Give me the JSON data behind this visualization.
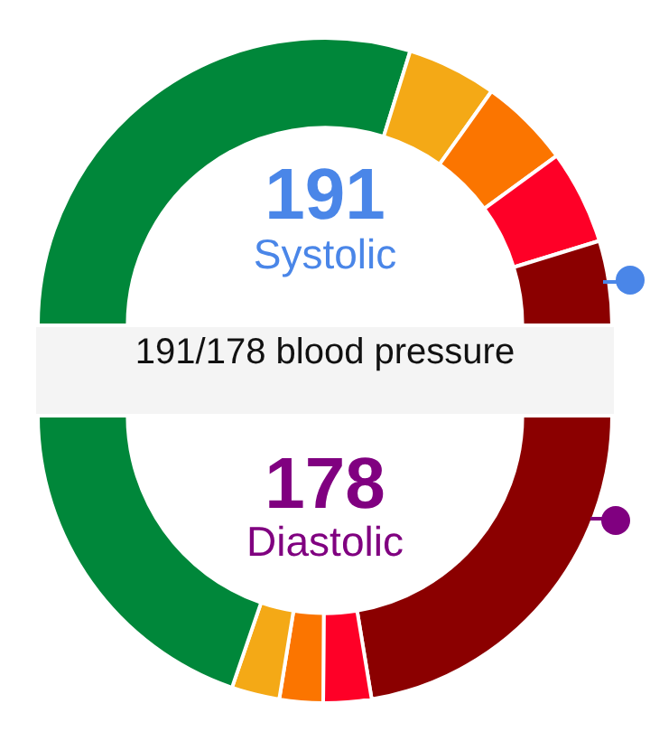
{
  "chart_data": [
    {
      "type": "donut",
      "title": "191/178 blood pressure",
      "annotations": [
        "191",
        "Systolic"
      ],
      "categories": [
        null,
        null,
        null,
        null,
        null
      ],
      "values": [
        59.6,
        10.1,
        10.2,
        10.6,
        9.5
      ],
      "colors": [
        "#00873a",
        "#f4a916",
        "#fb7500",
        "#fe0027",
        "#8b0000"
      ]
    },
    {
      "type": "donut",
      "annotations": [
        "178",
        "Diastolic"
      ],
      "categories": [
        null,
        null,
        null,
        null,
        null
      ],
      "values": [
        44.8,
        5.4,
        4.9,
        5.4,
        39.5
      ],
      "colors": [
        "#8b0000",
        "#fe0027",
        "#fb7500",
        "#f4a916",
        "#00873a"
      ]
    }
  ]
}
